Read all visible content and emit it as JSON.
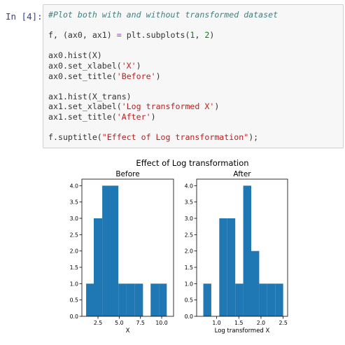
{
  "cell": {
    "prompt": "In [4]:",
    "lines": [
      [
        {
          "t": "#Plot both with and without transformed dataset",
          "c": "comment"
        }
      ],
      [],
      [
        {
          "t": "f, (ax0, ax1) ",
          "c": ""
        },
        {
          "t": "=",
          "c": "op"
        },
        {
          "t": " plt.subplots(",
          "c": ""
        },
        {
          "t": "1",
          "c": "num"
        },
        {
          "t": ", ",
          "c": ""
        },
        {
          "t": "2",
          "c": "num"
        },
        {
          "t": ")",
          "c": ""
        }
      ],
      [],
      [
        {
          "t": "ax0.hist(X)",
          "c": ""
        }
      ],
      [
        {
          "t": "ax0.set_xlabel(",
          "c": ""
        },
        {
          "t": "'X'",
          "c": "str"
        },
        {
          "t": ")",
          "c": ""
        }
      ],
      [
        {
          "t": "ax0.set_title(",
          "c": ""
        },
        {
          "t": "'Before'",
          "c": "str"
        },
        {
          "t": ")",
          "c": ""
        }
      ],
      [],
      [
        {
          "t": "ax1.hist(X_trans)",
          "c": ""
        }
      ],
      [
        {
          "t": "ax1.set_xlabel(",
          "c": ""
        },
        {
          "t": "'Log transformed X'",
          "c": "str"
        },
        {
          "t": ")",
          "c": ""
        }
      ],
      [
        {
          "t": "ax1.set_title(",
          "c": ""
        },
        {
          "t": "'After'",
          "c": "str"
        },
        {
          "t": ")",
          "c": ""
        }
      ],
      [],
      [
        {
          "t": "f.suptitle(",
          "c": ""
        },
        {
          "t": "\"Effect of Log transformation\"",
          "c": "str"
        },
        {
          "t": ");",
          "c": ""
        }
      ]
    ]
  },
  "colors": {
    "bar": "#1f77b4",
    "axis": "#000000"
  },
  "chart_data": {
    "suptitle": "Effect of Log transformation",
    "charts": [
      {
        "type": "bar",
        "title": "Before",
        "xlabel": "X",
        "ylabel": "",
        "xlim": [
          0.6,
          11.4
        ],
        "ylim": [
          0,
          4.2
        ],
        "xticks": [
          2.5,
          5.0,
          7.5,
          10.0
        ],
        "xtick_labels": [
          "2.5",
          "5.0",
          "7.5",
          "10.0"
        ],
        "yticks": [
          0.0,
          0.5,
          1.0,
          1.5,
          2.0,
          2.5,
          3.0,
          3.5,
          4.0
        ],
        "ytick_labels": [
          "0.0",
          "0.5",
          "1.0",
          "1.5",
          "2.0",
          "2.5",
          "3.0",
          "3.5",
          "4.0"
        ],
        "bins": [
          {
            "x0": 1.1,
            "x1": 2.0,
            "count": 1
          },
          {
            "x0": 2.0,
            "x1": 3.0,
            "count": 3
          },
          {
            "x0": 3.0,
            "x1": 3.9,
            "count": 4
          },
          {
            "x0": 3.9,
            "x1": 4.9,
            "count": 4
          },
          {
            "x0": 4.9,
            "x1": 5.8,
            "count": 1
          },
          {
            "x0": 5.8,
            "x1": 6.8,
            "count": 1
          },
          {
            "x0": 6.8,
            "x1": 7.8,
            "count": 1
          },
          {
            "x0": 7.8,
            "x1": 8.7,
            "count": 0
          },
          {
            "x0": 8.7,
            "x1": 9.7,
            "count": 1
          },
          {
            "x0": 9.7,
            "x1": 10.6,
            "count": 1
          }
        ]
      },
      {
        "type": "bar",
        "title": "After",
        "xlabel": "Log transformed X",
        "ylabel": "",
        "xlim": [
          0.55,
          2.6
        ],
        "ylim": [
          0,
          4.2
        ],
        "xticks": [
          1.0,
          1.5,
          2.0,
          2.5
        ],
        "xtick_labels": [
          "1.0",
          "1.5",
          "2.0",
          "2.5"
        ],
        "yticks": [
          0.0,
          0.5,
          1.0,
          1.5,
          2.0,
          2.5,
          3.0,
          3.5,
          4.0
        ],
        "ytick_labels": [
          "0.0",
          "0.5",
          "1.0",
          "1.5",
          "2.0",
          "2.5",
          "3.0",
          "3.5",
          "4.0"
        ],
        "bins": [
          {
            "x0": 0.7,
            "x1": 0.88,
            "count": 1
          },
          {
            "x0": 0.88,
            "x1": 1.06,
            "count": 0
          },
          {
            "x0": 1.06,
            "x1": 1.24,
            "count": 3
          },
          {
            "x0": 1.24,
            "x1": 1.42,
            "count": 3
          },
          {
            "x0": 1.42,
            "x1": 1.6,
            "count": 1
          },
          {
            "x0": 1.6,
            "x1": 1.78,
            "count": 4
          },
          {
            "x0": 1.78,
            "x1": 1.96,
            "count": 2
          },
          {
            "x0": 1.96,
            "x1": 2.14,
            "count": 1
          },
          {
            "x0": 2.14,
            "x1": 2.32,
            "count": 1
          },
          {
            "x0": 2.32,
            "x1": 2.5,
            "count": 1
          }
        ]
      }
    ]
  }
}
